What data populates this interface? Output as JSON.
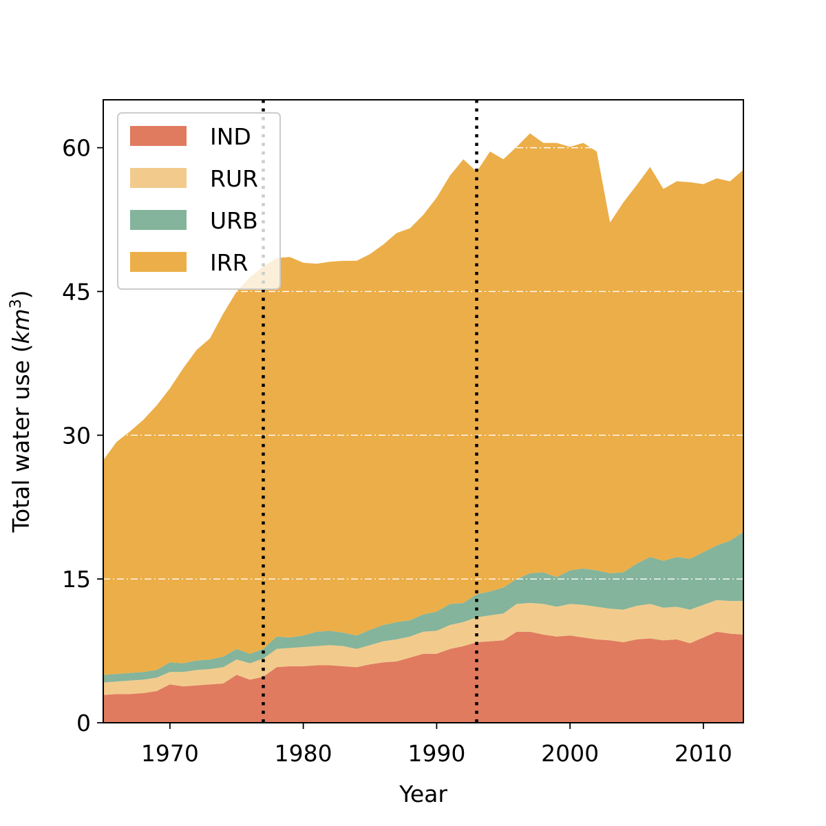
{
  "chart_data": {
    "type": "area",
    "stacked": true,
    "title": "",
    "xlabel": "Year",
    "ylabel": "Total water use (km³)",
    "ylabel_parts": {
      "main": "Total water use (",
      "italic": "km",
      "sup": "3",
      "close": ")"
    },
    "xlim": [
      1965,
      2013
    ],
    "ylim": [
      0,
      65
    ],
    "xticks": [
      1970,
      1980,
      1990,
      2000,
      2010
    ],
    "yticks": [
      0,
      15,
      30,
      45,
      60
    ],
    "grid": {
      "axis": "y",
      "style": "dash-dot",
      "color": "#ffffff",
      "values": [
        15,
        30,
        45,
        60
      ]
    },
    "vlines": [
      1977,
      1993
    ],
    "legend_position": "upper-left",
    "x": [
      1965,
      1966,
      1967,
      1968,
      1969,
      1970,
      1971,
      1972,
      1973,
      1974,
      1975,
      1976,
      1977,
      1978,
      1979,
      1980,
      1981,
      1982,
      1983,
      1984,
      1985,
      1986,
      1987,
      1988,
      1989,
      1990,
      1991,
      1992,
      1993,
      1994,
      1995,
      1996,
      1997,
      1998,
      1999,
      2000,
      2001,
      2002,
      2003,
      2004,
      2005,
      2006,
      2007,
      2008,
      2009,
      2010,
      2011,
      2012,
      2013
    ],
    "series": [
      {
        "name": "IND",
        "color": "#e07b5f",
        "values": [
          2.9,
          3.0,
          3.0,
          3.1,
          3.3,
          4.0,
          3.8,
          3.9,
          4.0,
          4.1,
          5.0,
          4.5,
          4.8,
          5.8,
          5.9,
          5.9,
          6.0,
          6.0,
          5.9,
          5.8,
          6.1,
          6.3,
          6.4,
          6.8,
          7.2,
          7.2,
          7.7,
          8.0,
          8.4,
          8.5,
          8.6,
          9.5,
          9.5,
          9.2,
          9.0,
          9.1,
          8.9,
          8.7,
          8.6,
          8.4,
          8.7,
          8.8,
          8.6,
          8.7,
          8.3,
          8.9,
          9.5,
          9.3,
          9.2
        ]
      },
      {
        "name": "RUR",
        "color": "#f2cb8c",
        "values": [
          1.3,
          1.3,
          1.4,
          1.4,
          1.4,
          1.3,
          1.5,
          1.6,
          1.6,
          1.7,
          1.6,
          1.7,
          1.9,
          1.9,
          1.9,
          2.0,
          2.0,
          2.1,
          2.1,
          1.9,
          2.0,
          2.2,
          2.3,
          2.2,
          2.3,
          2.4,
          2.5,
          2.5,
          2.6,
          2.7,
          2.8,
          2.9,
          3.0,
          3.2,
          3.1,
          3.3,
          3.4,
          3.4,
          3.3,
          3.4,
          3.5,
          3.6,
          3.4,
          3.4,
          3.5,
          3.4,
          3.3,
          3.4,
          3.5
        ]
      },
      {
        "name": "URB",
        "color": "#84b49b",
        "values": [
          0.8,
          0.8,
          0.8,
          0.8,
          0.8,
          1.0,
          0.9,
          1.0,
          1.0,
          1.1,
          1.1,
          1.0,
          1.0,
          1.3,
          1.1,
          1.2,
          1.5,
          1.5,
          1.4,
          1.4,
          1.6,
          1.7,
          1.8,
          1.7,
          1.8,
          2.0,
          2.2,
          2.0,
          2.4,
          2.5,
          2.7,
          2.6,
          3.1,
          3.3,
          3.1,
          3.5,
          3.8,
          3.8,
          3.7,
          3.9,
          4.4,
          4.9,
          4.9,
          5.2,
          5.3,
          5.5,
          5.7,
          6.3,
          7.2
        ]
      },
      {
        "name": "IRR",
        "color": "#ecae48",
        "values": [
          22.4,
          24.2,
          25.2,
          26.3,
          27.6,
          28.6,
          30.8,
          32.4,
          33.5,
          35.8,
          37.3,
          39.3,
          39.9,
          39.5,
          39.7,
          38.9,
          38.4,
          38.5,
          38.8,
          39.1,
          39.2,
          39.7,
          40.6,
          40.9,
          41.7,
          43.2,
          44.7,
          46.3,
          44.1,
          45.9,
          44.7,
          45.1,
          45.9,
          44.8,
          45.3,
          44.2,
          44.4,
          43.7,
          36.6,
          38.6,
          39.5,
          40.7,
          38.8,
          39.2,
          39.3,
          38.4,
          38.3,
          37.5,
          37.8
        ]
      }
    ]
  }
}
